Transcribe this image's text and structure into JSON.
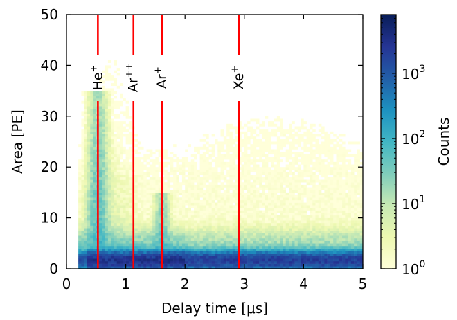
{
  "chart_data": {
    "type": "heatmap",
    "xlabel": "Delay time [μs]",
    "ylabel": "Area [PE]",
    "xlim": [
      0,
      5
    ],
    "ylim": [
      0,
      50
    ],
    "x_ticks": [
      0,
      1,
      2,
      3,
      4,
      5
    ],
    "y_ticks": [
      0,
      10,
      20,
      30,
      40,
      50
    ],
    "x_tick_labels": [
      "0",
      "1",
      "2",
      "3",
      "4",
      "5"
    ],
    "y_tick_labels": [
      "0",
      "10",
      "20",
      "30",
      "40",
      "50"
    ],
    "colorbar": {
      "label": "Counts",
      "scale": "log",
      "range": [
        1,
        8000
      ],
      "ticks": [
        {
          "value": 1,
          "base": "10",
          "exp": "0"
        },
        {
          "value": 10,
          "base": "10",
          "exp": "1"
        },
        {
          "value": 100,
          "base": "10",
          "exp": "2"
        },
        {
          "value": 1000,
          "base": "10",
          "exp": "3"
        }
      ],
      "colormap": "YlGnBu",
      "colormap_stops": [
        "#ffffd9",
        "#edf8b1",
        "#c7e9b4",
        "#7fcdbb",
        "#41b6c4",
        "#1d91c0",
        "#225ea8",
        "#253494",
        "#081d58"
      ]
    },
    "grid": false,
    "markers": [
      {
        "label_base": "He",
        "label_sup": "+",
        "x": 0.53,
        "color": "#ff0000"
      },
      {
        "label_base": "Ar",
        "label_sup": "++",
        "x": 1.13,
        "color": "#ff0000"
      },
      {
        "label_base": "Ar",
        "label_sup": "+",
        "x": 1.61,
        "color": "#ff0000"
      },
      {
        "label_base": "Xe",
        "label_sup": "+",
        "x": 2.91,
        "color": "#ff0000"
      }
    ],
    "density_features": [
      {
        "region": "baseline band",
        "x_range": [
          0.22,
          5.0
        ],
        "y_range": [
          0,
          4
        ],
        "approx_counts": 3000
      },
      {
        "region": "low-area band",
        "x_range": [
          0.25,
          5.0
        ],
        "y_range": [
          4,
          8
        ],
        "approx_counts": 30
      },
      {
        "region": "He+ peak",
        "x_center": 0.53,
        "y_max": 35,
        "approx_counts": 100
      },
      {
        "region": "Ar+ peak",
        "x_center": 1.61,
        "y_max": 15,
        "approx_counts": 60
      }
    ]
  }
}
